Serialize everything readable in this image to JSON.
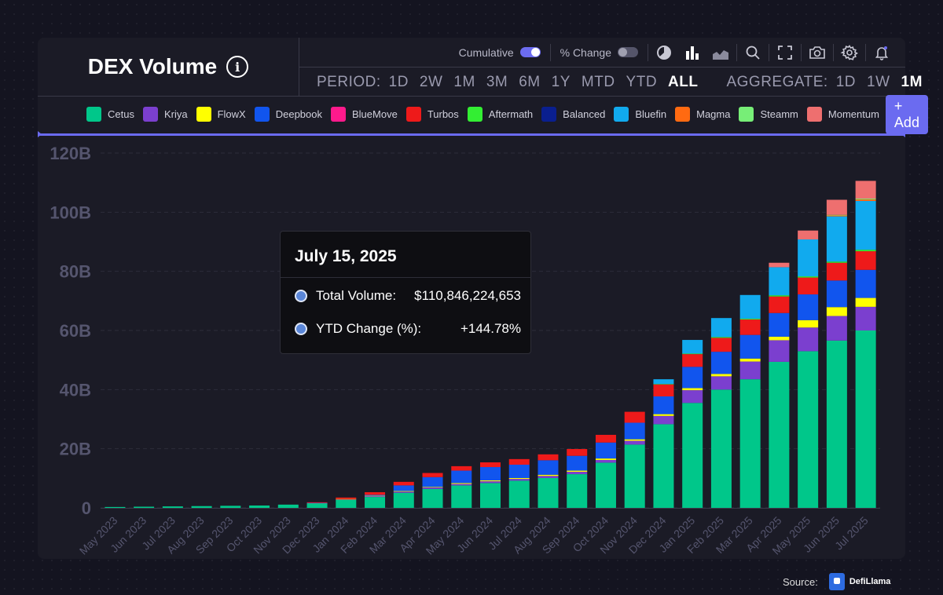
{
  "header": {
    "title": "DEX Volume",
    "info_icon": "info-icon"
  },
  "toolbar": {
    "cumulative_label": "Cumulative",
    "cumulative_on": true,
    "pct_change_label": "% Change",
    "pct_change_on": false,
    "icons": [
      "pie-chart-icon",
      "bar-chart-icon",
      "area-chart-icon",
      "search-icon",
      "fullscreen-icon",
      "camera-icon",
      "gear-icon",
      "bell-icon"
    ]
  },
  "period": {
    "label": "PERIOD:",
    "options": [
      "1D",
      "2W",
      "1M",
      "3M",
      "6M",
      "1Y",
      "MTD",
      "YTD",
      "ALL"
    ],
    "active": "ALL"
  },
  "aggregate": {
    "label": "AGGREGATE:",
    "options": [
      "1D",
      "1W",
      "1M"
    ],
    "active": "1M"
  },
  "add_button": "+ Add",
  "tooltip": {
    "date": "July 15, 2025",
    "rows": [
      {
        "label": "Total Volume:",
        "value": "$110,846,224,653"
      },
      {
        "label": "YTD Change (%):",
        "value": "+144.78%"
      }
    ]
  },
  "source": {
    "label": "Source:",
    "brand": "DefiLlama"
  },
  "chart_data": {
    "type": "bar",
    "stacked": true,
    "cumulative": true,
    "ylim": [
      0,
      120
    ],
    "yticks": [
      "0",
      "20B",
      "40B",
      "60B",
      "80B",
      "100B",
      "120B"
    ],
    "ytick_values": [
      0,
      20,
      40,
      60,
      80,
      100,
      120
    ],
    "grid": true,
    "legend_position": "top",
    "categories": [
      "May 2023",
      "Jun 2023",
      "Jul 2023",
      "Aug 2023",
      "Sep 2023",
      "Oct 2023",
      "Nov 2023",
      "Dec 2023",
      "Jan 2024",
      "Feb 2024",
      "Mar 2024",
      "Apr 2024",
      "May 2024",
      "Jun 2024",
      "Jul 2024",
      "Aug 2024",
      "Sep 2024",
      "Oct 2024",
      "Nov 2024",
      "Dec 2024",
      "Jan 2025",
      "Feb 2025",
      "Mar 2025",
      "Apr 2025",
      "May 2025",
      "Jun 2025",
      "Jul 2025"
    ],
    "series": [
      {
        "name": "Cetus",
        "color": "#00c78a",
        "values": [
          0.3,
          0.4,
          0.5,
          0.6,
          0.7,
          0.8,
          1.1,
          1.6,
          2.7,
          3.7,
          5.1,
          6.4,
          7.6,
          8.4,
          9.2,
          10.1,
          11.4,
          15.3,
          21.4,
          28.3,
          35.5,
          40.0,
          43.5,
          49.4,
          53.0,
          56.6,
          60.0
        ]
      },
      {
        "name": "Kriya",
        "color": "#7b3fcf",
        "values": [
          0,
          0,
          0,
          0,
          0,
          0,
          0,
          0.1,
          0.2,
          0.3,
          0.4,
          0.5,
          0.5,
          0.6,
          0.6,
          0.7,
          0.8,
          0.9,
          1.3,
          2.8,
          4.3,
          4.5,
          6.0,
          7.3,
          8.0,
          8.3,
          8.0
        ]
      },
      {
        "name": "FlowX",
        "color": "#ffff00",
        "values": [
          0,
          0,
          0,
          0,
          0,
          0,
          0,
          0,
          0.1,
          0.1,
          0.2,
          0.2,
          0.3,
          0.3,
          0.3,
          0.4,
          0.4,
          0.5,
          0.5,
          0.6,
          0.7,
          0.8,
          1.0,
          1.2,
          2.5,
          3.0,
          3.0
        ]
      },
      {
        "name": "Deepbook",
        "color": "#1155ee",
        "values": [
          0,
          0,
          0,
          0,
          0,
          0,
          0,
          0,
          0,
          0.3,
          1.9,
          3.3,
          4.2,
          4.5,
          4.5,
          4.9,
          5.0,
          5.4,
          5.6,
          6.0,
          7.2,
          7.5,
          8.0,
          8.0,
          8.7,
          9.0,
          9.5
        ]
      },
      {
        "name": "BlueMove",
        "color": "#ff1a8c",
        "values": [
          0,
          0,
          0,
          0,
          0,
          0,
          0,
          0,
          0,
          0,
          0,
          0,
          0,
          0,
          0,
          0,
          0,
          0,
          0,
          0,
          0,
          0,
          0,
          0,
          0,
          0,
          0
        ]
      },
      {
        "name": "Turbos",
        "color": "#ee1a1a",
        "values": [
          0,
          0,
          0,
          0,
          0,
          0,
          0,
          0.2,
          0.5,
          0.9,
          1.2,
          1.4,
          1.5,
          1.6,
          1.9,
          2.0,
          2.3,
          2.6,
          3.7,
          4.1,
          4.3,
          4.7,
          5.2,
          5.6,
          5.7,
          6.0,
          6.3
        ]
      },
      {
        "name": "Aftermath",
        "color": "#33ee33",
        "values": [
          0,
          0,
          0,
          0,
          0,
          0,
          0,
          0,
          0,
          0,
          0,
          0,
          0,
          0,
          0,
          0,
          0,
          0,
          0,
          0.1,
          0.2,
          0.3,
          0.3,
          0.4,
          0.4,
          0.4,
          0.5
        ]
      },
      {
        "name": "Balanced",
        "color": "#0a1f8f",
        "values": [
          0,
          0,
          0,
          0,
          0,
          0,
          0,
          0,
          0,
          0,
          0,
          0,
          0,
          0,
          0,
          0,
          0,
          0,
          0,
          0,
          0,
          0,
          0,
          0,
          0,
          0,
          0
        ]
      },
      {
        "name": "Bluefin",
        "color": "#11aaee",
        "values": [
          0,
          0,
          0,
          0,
          0,
          0,
          0,
          0,
          0,
          0,
          0,
          0,
          0,
          0,
          0,
          0,
          0,
          0,
          0,
          1.6,
          4.6,
          6.4,
          8.0,
          9.5,
          12.5,
          15.3,
          16.5
        ]
      },
      {
        "name": "Magma",
        "color": "#ff6a11",
        "values": [
          0,
          0,
          0,
          0,
          0,
          0,
          0,
          0,
          0,
          0,
          0,
          0,
          0,
          0,
          0,
          0,
          0,
          0,
          0,
          0,
          0,
          0,
          0,
          0,
          0,
          0.3,
          0.5
        ]
      },
      {
        "name": "Steamm",
        "color": "#77ee77",
        "values": [
          0,
          0,
          0,
          0,
          0,
          0,
          0,
          0,
          0,
          0,
          0,
          0,
          0,
          0,
          0,
          0,
          0,
          0,
          0,
          0,
          0,
          0,
          0,
          0,
          0,
          0.2,
          0.3
        ]
      },
      {
        "name": "Momentum",
        "color": "#ee6f6f",
        "values": [
          0,
          0,
          0,
          0,
          0,
          0,
          0,
          0,
          0,
          0,
          0,
          0,
          0,
          0,
          0,
          0,
          0,
          0,
          0,
          0,
          0,
          0,
          0,
          1.5,
          3.0,
          5.1,
          6.0
        ]
      }
    ]
  }
}
